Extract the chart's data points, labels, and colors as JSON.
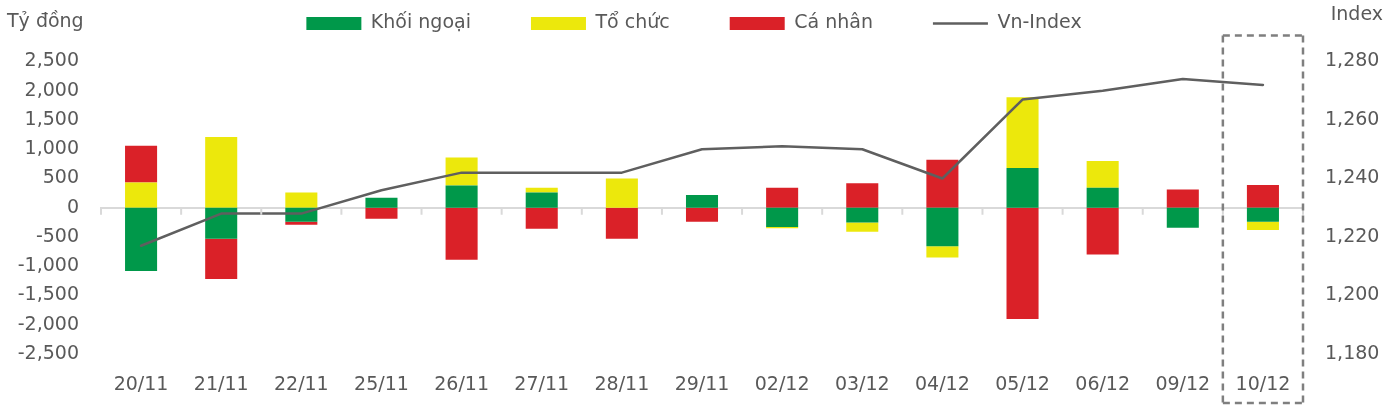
{
  "chart_data": {
    "type": "bar",
    "stacked": true,
    "ylabel": "Tỷ đồng",
    "y2label": "Index",
    "legend": "top",
    "categories": [
      "20/11",
      "21/11",
      "22/11",
      "25/11",
      "26/11",
      "27/11",
      "28/11",
      "29/11",
      "02/12",
      "03/12",
      "04/12",
      "05/12",
      "06/12",
      "09/12",
      "10/12"
    ],
    "series": [
      {
        "name": "Khối ngoại",
        "color": "#00984a",
        "values": [
          -1080,
          -530,
          -240,
          170,
          380,
          260,
          0,
          220,
          -330,
          -250,
          -660,
          680,
          340,
          -340,
          -240
        ]
      },
      {
        "name": "Tổ chức",
        "color": "#ece80c",
        "values": [
          430,
          1210,
          260,
          0,
          480,
          80,
          500,
          0,
          -20,
          -160,
          -190,
          1210,
          460,
          0,
          -140
        ]
      },
      {
        "name": "Cá nhân",
        "color": "#da2128",
        "values": [
          630,
          -690,
          -50,
          -190,
          -890,
          -360,
          -530,
          -240,
          340,
          420,
          820,
          -1900,
          -800,
          310,
          390
        ]
      },
      {
        "name": "Vn-Index",
        "type": "line",
        "axis": "y2",
        "color": "#5f5f5f",
        "values": [
          1217,
          1228,
          1228,
          1236,
          1242,
          1242,
          1242,
          1250,
          1251,
          1250,
          1240,
          1267,
          1270,
          1274,
          1272
        ]
      }
    ],
    "ylim": [
      -2500,
      2500
    ],
    "yticks": [
      {
        "value": -2500,
        "label": "-2,500"
      },
      {
        "value": -2000,
        "label": "-2,000"
      },
      {
        "value": -1500,
        "label": "-1,500"
      },
      {
        "value": -1000,
        "label": "-1,000"
      },
      -500,
      0,
      500,
      {
        "value": 1000,
        "label": "1,000"
      },
      {
        "value": 1500,
        "label": "1,500"
      },
      {
        "value": 2000,
        "label": "2,000"
      },
      {
        "value": 2500,
        "label": "2,500"
      }
    ],
    "y2lim": [
      1180,
      1280
    ],
    "y2ticks": [
      {
        "value": 1180,
        "label": "1,180"
      },
      {
        "value": 1200,
        "label": "1,200"
      },
      {
        "value": 1220,
        "label": "1,220"
      },
      {
        "value": 1240,
        "label": "1,240"
      },
      {
        "value": 1260,
        "label": "1,260"
      },
      {
        "value": 1280,
        "label": "1,280"
      }
    ]
  }
}
